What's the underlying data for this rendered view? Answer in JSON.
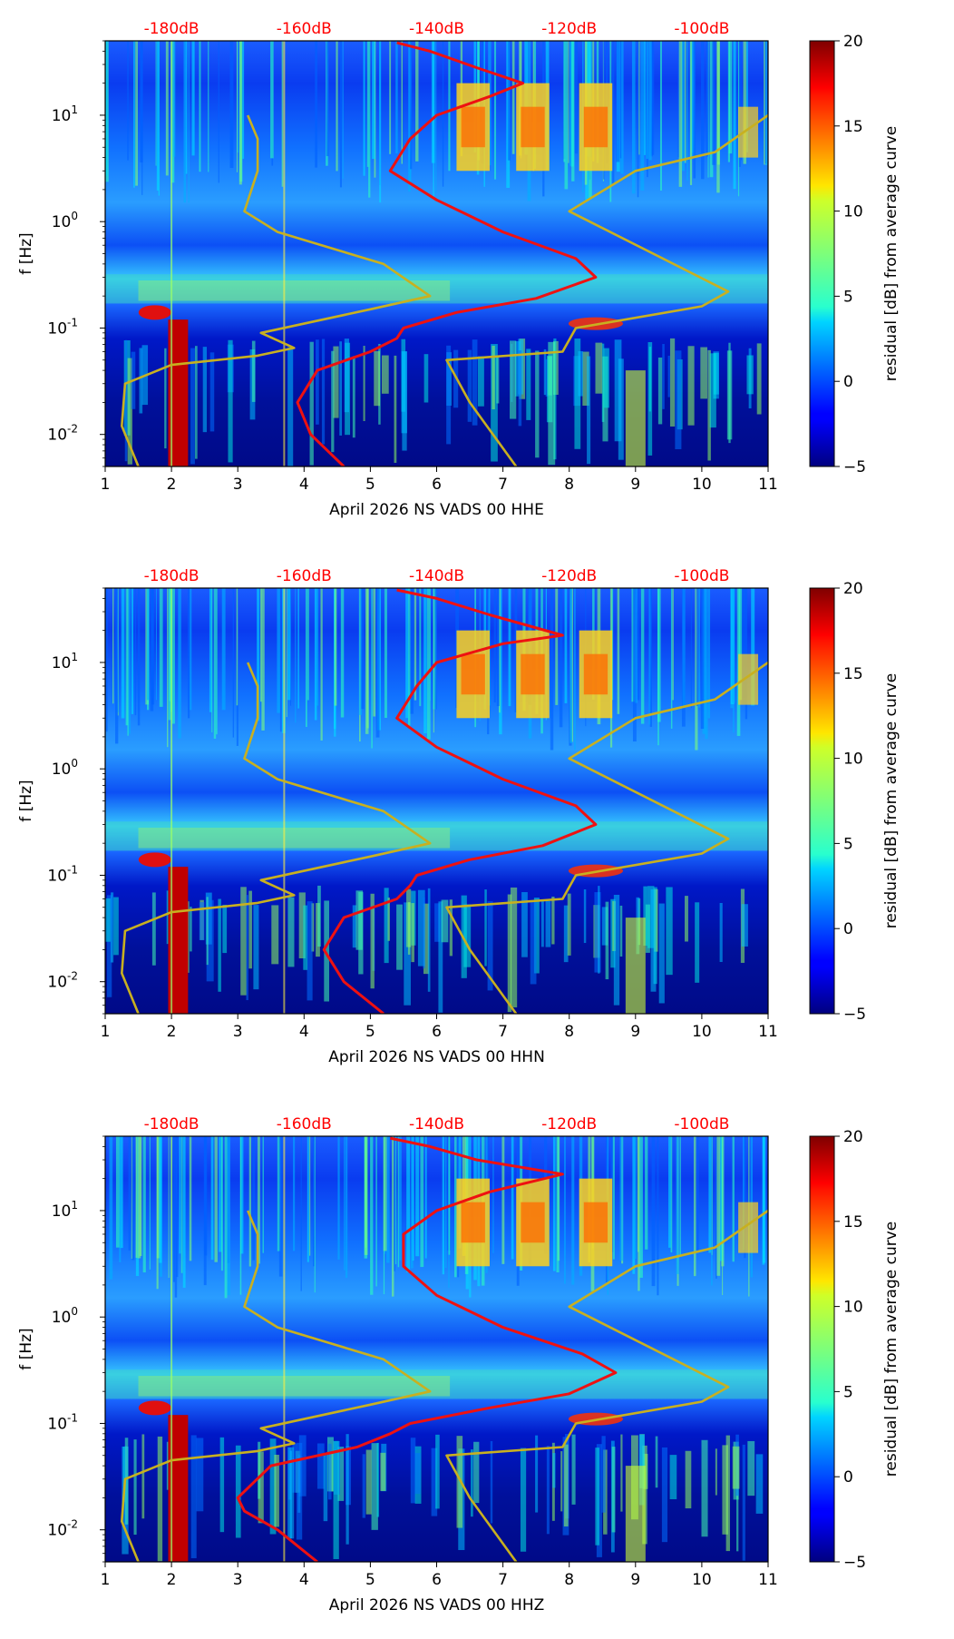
{
  "chart_data": [
    {
      "type": "heatmap",
      "xlabel": "April 2026 NS VADS 00 HHE",
      "ylabel": "f [Hz]",
      "xlim": [
        1,
        11
      ],
      "ylim": [
        0.005,
        50
      ],
      "x_ticks": [
        "1",
        "2",
        "3",
        "4",
        "5",
        "6",
        "7",
        "8",
        "9",
        "10",
        "11"
      ],
      "y_ticks": [
        "10^-2",
        "10^-1",
        "10^0",
        "10^1"
      ],
      "db_labels": [
        "-180dB",
        "-160dB",
        "-140dB",
        "-120dB",
        "-100dB"
      ],
      "colorbar": {
        "label": "residual [dB] from average curve",
        "range": [
          -5,
          20
        ],
        "ticks": [
          "-5",
          "0",
          "5",
          "10",
          "15",
          "20"
        ]
      },
      "series": [
        {
          "name": "average PSD curve",
          "color": "#ee1111",
          "points": [
            [
              4.6,
              0.005
            ],
            [
              4.1,
              0.01
            ],
            [
              3.9,
              0.02
            ],
            [
              4.2,
              0.04
            ],
            [
              5.0,
              0.06
            ],
            [
              5.4,
              0.08
            ],
            [
              5.5,
              0.1
            ],
            [
              6.3,
              0.14
            ],
            [
              7.5,
              0.19
            ],
            [
              8.4,
              0.3
            ],
            [
              8.1,
              0.45
            ],
            [
              7.0,
              0.8
            ],
            [
              6.0,
              1.6
            ],
            [
              5.3,
              3.0
            ],
            [
              5.6,
              6.0
            ],
            [
              6.0,
              10.0
            ],
            [
              6.8,
              15.0
            ],
            [
              7.3,
              20.0
            ],
            [
              6.6,
              28.0
            ],
            [
              5.9,
              40.0
            ],
            [
              5.4,
              48.0
            ]
          ]
        },
        {
          "name": "NLNM / NHNM model",
          "color": "#c8b020",
          "points": [
            [
              1.5,
              0.005
            ],
            [
              1.25,
              0.012
            ],
            [
              1.3,
              0.03
            ],
            [
              2.0,
              0.045
            ],
            [
              3.3,
              0.055
            ],
            [
              3.85,
              0.065
            ],
            [
              3.35,
              0.09
            ],
            [
              5.0,
              0.15
            ],
            [
              5.9,
              0.2
            ],
            [
              5.2,
              0.4
            ],
            [
              3.6,
              0.8
            ],
            [
              3.1,
              1.25
            ],
            [
              3.3,
              3.0
            ],
            [
              3.3,
              6.0
            ],
            [
              3.15,
              10.0
            ]
          ]
        },
        {
          "name": "NHNM branch",
          "color": "#c8b020",
          "points": [
            [
              7.2,
              0.005
            ],
            [
              6.5,
              0.02
            ],
            [
              6.15,
              0.05
            ],
            [
              7.9,
              0.06
            ],
            [
              8.1,
              0.1
            ],
            [
              10.0,
              0.16
            ],
            [
              10.4,
              0.22
            ],
            [
              8.0,
              1.25
            ],
            [
              9.0,
              3.0
            ],
            [
              10.2,
              4.5
            ],
            [
              11.0,
              10.0
            ]
          ]
        }
      ]
    },
    {
      "type": "heatmap",
      "xlabel": "April 2026 NS VADS 00 HHN",
      "ylabel": "f [Hz]",
      "xlim": [
        1,
        11
      ],
      "ylim": [
        0.005,
        50
      ],
      "x_ticks": [
        "1",
        "2",
        "3",
        "4",
        "5",
        "6",
        "7",
        "8",
        "9",
        "10",
        "11"
      ],
      "y_ticks": [
        "10^-2",
        "10^-1",
        "10^0",
        "10^1"
      ],
      "db_labels": [
        "-180dB",
        "-160dB",
        "-140dB",
        "-120dB",
        "-100dB"
      ],
      "colorbar": {
        "label": "residual [dB] from average curve",
        "range": [
          -5,
          20
        ],
        "ticks": [
          "-5",
          "0",
          "5",
          "10",
          "15",
          "20"
        ]
      },
      "series": [
        {
          "name": "average PSD curve",
          "color": "#ee1111",
          "points": [
            [
              5.2,
              0.005
            ],
            [
              4.6,
              0.01
            ],
            [
              4.3,
              0.02
            ],
            [
              4.6,
              0.04
            ],
            [
              5.4,
              0.06
            ],
            [
              5.6,
              0.08
            ],
            [
              5.7,
              0.1
            ],
            [
              6.5,
              0.14
            ],
            [
              7.6,
              0.19
            ],
            [
              8.4,
              0.3
            ],
            [
              8.1,
              0.45
            ],
            [
              7.0,
              0.8
            ],
            [
              6.0,
              1.6
            ],
            [
              5.4,
              3.0
            ],
            [
              5.7,
              6.0
            ],
            [
              6.0,
              10.0
            ],
            [
              7.0,
              15.0
            ],
            [
              7.9,
              18.0
            ],
            [
              6.8,
              28.0
            ],
            [
              6.0,
              40.0
            ],
            [
              5.4,
              48.0
            ]
          ]
        },
        {
          "name": "NLNM / NHNM model",
          "color": "#c8b020",
          "points": [
            [
              1.5,
              0.005
            ],
            [
              1.25,
              0.012
            ],
            [
              1.3,
              0.03
            ],
            [
              2.0,
              0.045
            ],
            [
              3.3,
              0.055
            ],
            [
              3.85,
              0.065
            ],
            [
              3.35,
              0.09
            ],
            [
              5.0,
              0.15
            ],
            [
              5.9,
              0.2
            ],
            [
              5.2,
              0.4
            ],
            [
              3.6,
              0.8
            ],
            [
              3.1,
              1.25
            ],
            [
              3.3,
              3.0
            ],
            [
              3.3,
              6.0
            ],
            [
              3.15,
              10.0
            ]
          ]
        },
        {
          "name": "NHNM branch",
          "color": "#c8b020",
          "points": [
            [
              7.2,
              0.005
            ],
            [
              6.5,
              0.02
            ],
            [
              6.15,
              0.05
            ],
            [
              7.9,
              0.06
            ],
            [
              8.1,
              0.1
            ],
            [
              10.0,
              0.16
            ],
            [
              10.4,
              0.22
            ],
            [
              8.0,
              1.25
            ],
            [
              9.0,
              3.0
            ],
            [
              10.2,
              4.5
            ],
            [
              11.0,
              10.0
            ]
          ]
        }
      ]
    },
    {
      "type": "heatmap",
      "xlabel": "April 2026 NS VADS 00 HHZ",
      "ylabel": "f [Hz]",
      "xlim": [
        1,
        11
      ],
      "ylim": [
        0.005,
        50
      ],
      "x_ticks": [
        "1",
        "2",
        "3",
        "4",
        "5",
        "6",
        "7",
        "8",
        "9",
        "10",
        "11"
      ],
      "y_ticks": [
        "10^-2",
        "10^-1",
        "10^0",
        "10^1"
      ],
      "db_labels": [
        "-180dB",
        "-160dB",
        "-140dB",
        "-120dB",
        "-100dB"
      ],
      "colorbar": {
        "label": "residual [dB] from average curve",
        "range": [
          -5,
          20
        ],
        "ticks": [
          "-5",
          "0",
          "5",
          "10",
          "15",
          "20"
        ]
      },
      "series": [
        {
          "name": "average PSD curve",
          "color": "#ee1111",
          "points": [
            [
              4.2,
              0.005
            ],
            [
              3.6,
              0.01
            ],
            [
              3.1,
              0.015
            ],
            [
              3.0,
              0.02
            ],
            [
              3.5,
              0.04
            ],
            [
              4.8,
              0.06
            ],
            [
              5.3,
              0.08
            ],
            [
              5.6,
              0.1
            ],
            [
              6.8,
              0.14
            ],
            [
              8.0,
              0.19
            ],
            [
              8.7,
              0.3
            ],
            [
              8.2,
              0.45
            ],
            [
              7.0,
              0.8
            ],
            [
              6.0,
              1.6
            ],
            [
              5.5,
              3.0
            ],
            [
              5.5,
              6.0
            ],
            [
              6.0,
              10.0
            ],
            [
              6.8,
              15.0
            ],
            [
              7.9,
              22.0
            ],
            [
              6.6,
              30.0
            ],
            [
              5.9,
              40.0
            ],
            [
              5.3,
              48.0
            ]
          ]
        },
        {
          "name": "NLNM / NHNM model",
          "color": "#c8b020",
          "points": [
            [
              1.5,
              0.005
            ],
            [
              1.25,
              0.012
            ],
            [
              1.3,
              0.03
            ],
            [
              2.0,
              0.045
            ],
            [
              3.3,
              0.055
            ],
            [
              3.85,
              0.065
            ],
            [
              3.35,
              0.09
            ],
            [
              5.0,
              0.15
            ],
            [
              5.9,
              0.2
            ],
            [
              5.2,
              0.4
            ],
            [
              3.6,
              0.8
            ],
            [
              3.1,
              1.25
            ],
            [
              3.3,
              3.0
            ],
            [
              3.3,
              6.0
            ],
            [
              3.15,
              10.0
            ]
          ]
        },
        {
          "name": "NHNM branch",
          "color": "#c8b020",
          "points": [
            [
              7.2,
              0.005
            ],
            [
              6.5,
              0.02
            ],
            [
              6.15,
              0.05
            ],
            [
              7.9,
              0.06
            ],
            [
              8.1,
              0.1
            ],
            [
              10.0,
              0.16
            ],
            [
              10.4,
              0.22
            ],
            [
              8.0,
              1.25
            ],
            [
              9.0,
              3.0
            ],
            [
              10.2,
              4.5
            ],
            [
              11.0,
              10.0
            ]
          ]
        }
      ]
    }
  ]
}
